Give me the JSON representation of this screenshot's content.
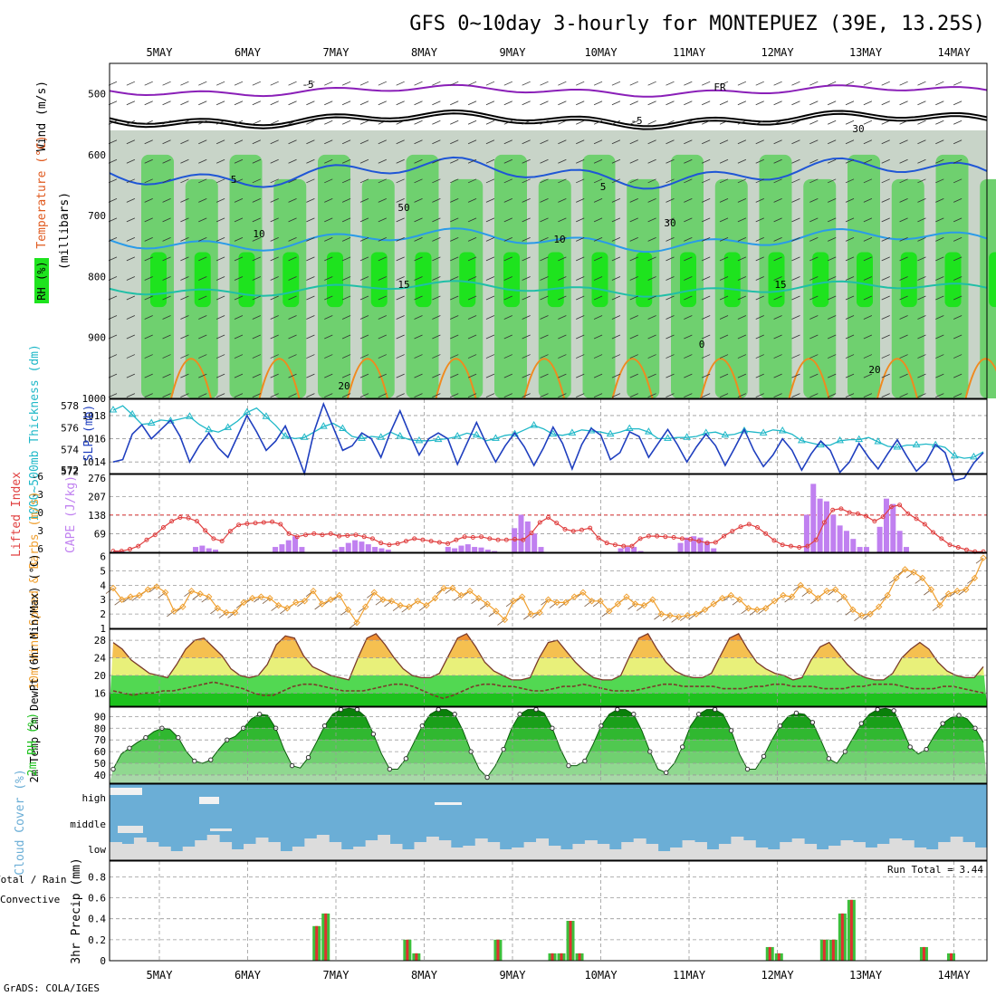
{
  "title": "GFS 0~10day 3-hourly for MONTEPUEZ (39E, 13.25S)",
  "footer": "GrADS: COLA/IGES",
  "dates": [
    "5MAY",
    "6MAY",
    "7MAY",
    "8MAY",
    "9MAY",
    "10MAY",
    "11MAY",
    "12MAY",
    "13MAY",
    "14MAY"
  ],
  "colors": {
    "rh_light": "#c8d4c8",
    "rh_mid": "#6fd06f",
    "rh_strong": "#1ee31e",
    "temp_minus5": "#8a1fb8",
    "temp_5": "#1f56d6",
    "temp_10": "#2a9be8",
    "temp_15": "#1fbfa6",
    "temp_20": "#f08a1f",
    "cloud": "#6baed6",
    "cape": "#c080f0",
    "lifted": "#e04040",
    "slp": "#1f3fbf",
    "thick": "#20b8c8",
    "wind_speed": "#f0a030"
  },
  "chart_data": [
    {
      "type": "heatmap",
      "name": "upper_air",
      "ylabel": "(millibars)",
      "legend_labels": [
        "RH (%)",
        "Temperature (°C)",
        "Wind (m/s)"
      ],
      "y_ticks": [
        500,
        600,
        700,
        800,
        900,
        1000
      ],
      "ylim": [
        1000,
        450
      ],
      "isotherm_labels": [
        "-5",
        "FR",
        "-5",
        "5",
        "5",
        "10",
        "10",
        "15",
        "15",
        "20",
        "20",
        "0",
        "30",
        "30",
        "50"
      ]
    },
    {
      "type": "line",
      "name": "slp_thickness",
      "ylabel_left": "1000~500mb Thickness (dm)",
      "ylabel_right": "SLP (mb)",
      "left_ticks": [
        572,
        574,
        576,
        578
      ],
      "right_ticks": [
        1014,
        1016,
        1018
      ],
      "slp": [
        1014.0,
        1014.2,
        1016.4,
        1017.2,
        1016.0,
        1016.8,
        1017.6,
        1016.2,
        1014.0,
        1015.4,
        1016.5,
        1015.2,
        1014.4,
        1016.2,
        1018.0,
        1016.6,
        1015.0,
        1015.8,
        1017.1,
        1015.2,
        1013.0,
        1016.6,
        1019.0,
        1017.0,
        1015.0,
        1015.4,
        1016.5,
        1016.0,
        1014.4,
        1016.6,
        1018.4,
        1016.4,
        1014.6,
        1016.0,
        1016.5,
        1016.0,
        1013.8,
        1015.6,
        1017.4,
        1015.6,
        1014.0,
        1015.4,
        1016.5,
        1015.3,
        1013.7,
        1015.2,
        1017.0,
        1015.6,
        1013.4,
        1015.5,
        1016.9,
        1016.3,
        1014.2,
        1014.8,
        1016.6,
        1016.2,
        1014.4,
        1015.6,
        1016.8,
        1015.5,
        1014.0,
        1015.3,
        1016.4,
        1015.4,
        1013.7,
        1015.2,
        1016.8,
        1015.0,
        1013.6,
        1014.6,
        1016.0,
        1015.0,
        1013.3,
        1014.7,
        1015.8,
        1015.0,
        1013.1,
        1014.0,
        1015.6,
        1014.4,
        1013.4,
        1014.7,
        1015.9,
        1014.5,
        1013.2,
        1014.0,
        1015.5,
        1014.8,
        1012.4,
        1012.6,
        1013.9,
        1014.8
      ],
      "thickness": [
        577.6,
        578.0,
        577.2,
        576.3,
        576.4,
        576.7,
        576.6,
        576.8,
        577.0,
        576.3,
        575.8,
        575.6,
        576.0,
        576.6,
        577.4,
        577.8,
        577.0,
        576.2,
        575.2,
        575.0,
        575.1,
        575.6,
        576.1,
        576.4,
        575.9,
        575.2,
        575.0,
        575.2,
        575.1,
        575.6,
        575.2,
        574.9,
        574.8,
        574.8,
        574.9,
        575.0,
        575.2,
        575.5,
        575.3,
        574.8,
        575.0,
        575.3,
        575.4,
        575.8,
        576.2,
        575.9,
        575.4,
        575.3,
        575.5,
        575.8,
        575.7,
        575.6,
        575.4,
        575.6,
        575.9,
        575.9,
        575.6,
        575.0,
        575.0,
        575.1,
        575.1,
        575.2,
        575.5,
        575.6,
        575.3,
        575.4,
        575.7,
        575.6,
        575.5,
        575.8,
        575.7,
        575.4,
        574.8,
        574.6,
        574.4,
        574.4,
        574.8,
        574.9,
        574.9,
        575.1,
        574.7,
        574.3,
        574.2,
        574.4,
        574.4,
        574.5,
        574.4,
        574.2,
        573.4,
        573.2,
        573.3,
        573.8
      ]
    },
    {
      "type": "bar",
      "name": "cape_lifted_index",
      "ylabel_left": "Lifted Index",
      "ylabel_right": "CAPE (J/kg)",
      "left_ticks": [
        "-6",
        "-3",
        "0",
        "3",
        "6"
      ],
      "right_ticks": [
        69,
        138,
        207,
        276
      ],
      "cape": [
        5,
        3,
        0,
        0,
        0,
        0,
        0,
        0,
        0,
        0,
        0,
        0,
        20,
        25,
        15,
        10,
        0,
        0,
        0,
        0,
        0,
        0,
        0,
        0,
        20,
        30,
        45,
        60,
        20,
        0,
        0,
        0,
        0,
        10,
        20,
        35,
        45,
        40,
        30,
        20,
        15,
        10,
        0,
        0,
        0,
        0,
        0,
        0,
        0,
        0,
        20,
        15,
        25,
        30,
        20,
        18,
        10,
        5,
        0,
        0,
        90,
        140,
        115,
        70,
        20,
        0,
        0,
        0,
        0,
        0,
        0,
        0,
        0,
        0,
        0,
        0,
        15,
        20,
        20,
        5,
        0,
        0,
        0,
        0,
        0,
        35,
        55,
        60,
        55,
        40,
        15,
        0,
        0,
        0,
        0,
        0,
        0,
        0,
        0,
        0,
        0,
        0,
        0,
        0,
        140,
        255,
        200,
        190,
        140,
        100,
        80,
        50,
        20,
        20,
        0,
        95,
        200,
        180,
        80,
        20,
        0,
        0,
        0,
        0,
        0,
        0,
        0,
        0,
        0,
        0,
        0
      ],
      "lifted_index": [
        5.8,
        5.8,
        5.5,
        5.0,
        4.0,
        3.2,
        2.0,
        1.0,
        0.4,
        0.5,
        1.0,
        2.5,
        3.8,
        4.2,
        2.6,
        1.6,
        1.4,
        1.3,
        1.2,
        1.1,
        1.5,
        3.0,
        3.5,
        3.2,
        3.0,
        3.2,
        3.0,
        3.4,
        3.3,
        3.2,
        3.5,
        3.8,
        4.5,
        4.8,
        4.6,
        4.2,
        3.8,
        4.0,
        4.2,
        4.4,
        4.6,
        4.0,
        3.5,
        3.6,
        3.5,
        3.8,
        4.0,
        4.0,
        3.9,
        4.0,
        2.9,
        1.2,
        0.4,
        1.3,
        2.3,
        2.6,
        2.4,
        2.1,
        3.7,
        4.5,
        4.8,
        5.0,
        5.0,
        3.8,
        3.4,
        3.4,
        3.5,
        3.6,
        3.8,
        3.9,
        4.2,
        4.5,
        4.4,
        3.4,
        2.6,
        1.9,
        1.5,
        2.0,
        3.0,
        4.1,
        4.8,
        5.0,
        5.2,
        5.0,
        4.0,
        1.2,
        -0.8,
        -1.0,
        -0.4,
        -0.2,
        0.2,
        1.0,
        0.3,
        -1.3,
        -1.6,
        -0.2,
        0.6,
        1.5,
        2.8,
        3.8,
        4.8,
        5.2,
        5.6,
        5.9,
        5.9
      ]
    },
    {
      "type": "line",
      "name": "wind_10m",
      "ylabel": "10m Wind Speed & Barbs (m/s)",
      "y_ticks": [
        1,
        2,
        3,
        4,
        5,
        6
      ],
      "speed": [
        3.8,
        3.0,
        3.2,
        3.3,
        3.7,
        3.9,
        3.5,
        2.2,
        2.5,
        3.6,
        3.4,
        3.2,
        2.4,
        2.1,
        2.1,
        2.8,
        3.1,
        3.2,
        3.1,
        2.6,
        2.4,
        2.8,
        2.9,
        3.6,
        2.7,
        3.0,
        3.3,
        2.3,
        1.4,
        2.5,
        3.5,
        3.0,
        2.9,
        2.6,
        2.5,
        2.9,
        2.6,
        3.1,
        3.8,
        3.8,
        3.3,
        3.6,
        3.1,
        2.7,
        2.2,
        1.6,
        2.9,
        3.2,
        2.0,
        2.1,
        3.0,
        2.8,
        2.8,
        3.2,
        3.5,
        2.9,
        2.9,
        2.2,
        2.7,
        3.2,
        2.7,
        2.6,
        3.0,
        2.0,
        1.9,
        1.8,
        1.9,
        2.0,
        2.3,
        2.7,
        3.1,
        3.3,
        3.0,
        2.4,
        2.3,
        2.4,
        2.9,
        3.3,
        3.2,
        4.0,
        3.6,
        3.1,
        3.6,
        3.7,
        3.2,
        2.3,
        1.9,
        2.0,
        2.5,
        3.3,
        4.5,
        5.1,
        4.9,
        4.5,
        3.7,
        2.6,
        3.4,
        3.6,
        3.7,
        4.5,
        5.9
      ]
    },
    {
      "type": "area",
      "name": "temp_2m",
      "ylabel": "2m Temp 2m DewPt (6hr Min/Max) (°C)",
      "y_ticks": [
        16,
        20,
        24,
        28
      ],
      "temp": [
        27.5,
        26.0,
        23.5,
        22.0,
        20.5,
        20.0,
        19.5,
        22.5,
        26.0,
        28.0,
        28.5,
        26.5,
        24.5,
        21.5,
        20.0,
        19.5,
        20.0,
        22.5,
        27.0,
        29.0,
        28.5,
        24.5,
        22.0,
        21.0,
        20.0,
        19.5,
        19.0,
        24.0,
        28.5,
        29.5,
        27.0,
        24.0,
        21.5,
        20.0,
        19.5,
        19.5,
        20.5,
        24.5,
        28.5,
        29.5,
        26.5,
        23.0,
        21.0,
        20.0,
        19.0,
        19.0,
        19.5,
        24.0,
        27.5,
        28.0,
        25.5,
        23.0,
        21.0,
        19.5,
        19.0,
        19.0,
        20.0,
        24.5,
        28.5,
        29.5,
        26.0,
        23.0,
        21.0,
        20.0,
        19.5,
        19.5,
        20.5,
        24.5,
        28.5,
        29.5,
        26.0,
        23.0,
        21.5,
        20.5,
        20.0,
        19.0,
        19.5,
        23.5,
        26.5,
        27.5,
        25.0,
        22.5,
        20.5,
        19.5,
        19.0,
        19.0,
        20.5,
        24.0,
        26.0,
        27.5,
        26.0,
        23.0,
        21.0,
        20.0,
        19.5,
        19.5,
        22.0
      ],
      "dewpt": [
        16.5,
        16.0,
        15.5,
        16.0,
        16.0,
        16.5,
        16.5,
        17.0,
        17.5,
        18.0,
        18.5,
        18.0,
        17.5,
        17.0,
        16.0,
        15.5,
        15.5,
        16.5,
        17.5,
        18.0,
        18.0,
        17.5,
        17.0,
        16.5,
        16.5,
        16.5,
        17.0,
        17.5,
        18.0,
        18.0,
        17.5,
        16.5,
        15.5,
        14.8,
        15.5,
        16.5,
        17.5,
        18.0,
        18.0,
        17.5,
        17.5,
        17.0,
        16.5,
        16.5,
        17.0,
        17.5,
        17.5,
        18.0,
        17.5,
        17.0,
        16.5,
        16.5,
        16.5,
        17.0,
        17.5,
        18.0,
        18.0,
        17.5,
        17.5,
        17.5,
        17.5,
        17.0,
        17.0,
        17.0,
        17.5,
        17.5,
        18.0,
        18.0,
        17.5,
        17.5,
        17.5,
        17.0,
        17.0,
        17.0,
        17.5,
        17.5,
        18.0,
        18.0,
        18.0,
        17.5,
        17.0,
        17.0,
        17.0,
        17.5,
        17.5,
        17.0,
        16.5,
        16.0
      ]
    },
    {
      "type": "area",
      "name": "rh_2m",
      "ylabel": "2m RH (%)",
      "y_ticks": [
        40,
        50,
        60,
        70,
        80,
        90
      ],
      "rh": [
        45,
        58,
        63,
        68,
        72,
        77,
        80,
        79,
        72,
        60,
        52,
        50,
        53,
        62,
        70,
        73,
        80,
        88,
        92,
        91,
        80,
        62,
        48,
        46,
        55,
        68,
        82,
        92,
        96,
        97,
        96,
        90,
        75,
        58,
        45,
        45,
        54,
        68,
        82,
        92,
        96,
        96,
        92,
        78,
        60,
        45,
        38,
        48,
        62,
        80,
        92,
        96,
        96,
        93,
        80,
        62,
        48,
        48,
        52,
        66,
        82,
        92,
        96,
        96,
        92,
        78,
        60,
        45,
        42,
        50,
        64,
        82,
        92,
        96,
        96,
        92,
        78,
        58,
        45,
        45,
        56,
        70,
        82,
        90,
        93,
        92,
        85,
        70,
        54,
        50,
        60,
        72,
        84,
        92,
        96,
        97,
        95,
        80,
        64,
        58,
        62,
        74,
        84,
        89,
        91,
        88,
        80,
        68
      ]
    },
    {
      "type": "area",
      "name": "cloud_cover",
      "ylabel": "Cloud Cover (%)",
      "row_labels": [
        "high",
        "middle",
        "low"
      ]
    },
    {
      "type": "bar",
      "name": "precip_3hr",
      "ylabel_left": "Total / Rain Convective",
      "ylabel": "3hr Precip (mm)",
      "y_ticks": [
        "0",
        "0.2",
        "0.4",
        "0.6",
        "0.8"
      ],
      "annotation": "Run Total = 3.44",
      "bars": [
        {
          "i": 22,
          "total": 0.33,
          "conv": 0.33
        },
        {
          "i": 23,
          "total": 0.45,
          "conv": 0.45
        },
        {
          "i": 32,
          "total": 0.2,
          "conv": 0.2
        },
        {
          "i": 33,
          "total": 0.07,
          "conv": 0.07
        },
        {
          "i": 42,
          "total": 0.2,
          "conv": 0.2
        },
        {
          "i": 48,
          "total": 0.07,
          "conv": 0.07
        },
        {
          "i": 49,
          "total": 0.07,
          "conv": 0.07
        },
        {
          "i": 50,
          "total": 0.38,
          "conv": 0.38
        },
        {
          "i": 51,
          "total": 0.07,
          "conv": 0.07
        },
        {
          "i": 72,
          "total": 0.13,
          "conv": 0.13
        },
        {
          "i": 73,
          "total": 0.07,
          "conv": 0.07
        },
        {
          "i": 78,
          "total": 0.2,
          "conv": 0.2
        },
        {
          "i": 79,
          "total": 0.2,
          "conv": 0.2
        },
        {
          "i": 80,
          "total": 0.45,
          "conv": 0.45
        },
        {
          "i": 81,
          "total": 0.58,
          "conv": 0.58
        },
        {
          "i": 89,
          "total": 0.13,
          "conv": 0.13
        },
        {
          "i": 92,
          "total": 0.07,
          "conv": 0.07
        }
      ]
    }
  ]
}
